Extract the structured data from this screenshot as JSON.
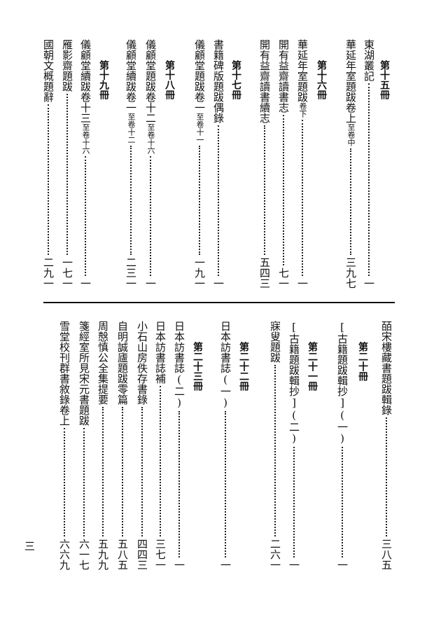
{
  "top": {
    "h15": "第十五冊",
    "e1": {
      "title": "東湖叢記",
      "page": "一"
    },
    "e2": {
      "title": "華延年室題跋卷上",
      "small": "至卷中",
      "page": "三九七"
    },
    "h16": "第十六冊",
    "e3": {
      "title": "華延年室題跋",
      "small": "卷下",
      "page": "一"
    },
    "e4": {
      "title": "開有益齋讀書志",
      "page": "七一"
    },
    "e5": {
      "title": "開有益齋讀書續志",
      "page": "五四三"
    },
    "h17": "第十七冊",
    "e6": {
      "title": "書籍碑版題跋偶錄",
      "page": "一"
    },
    "e7": {
      "title": "儀顧堂題跋卷一",
      "small": "至卷十一",
      "page": "一九一"
    },
    "h18": "第十八冊",
    "e8": {
      "title": "儀顧堂題跋卷十二",
      "small": "至卷十六",
      "page": "一"
    },
    "e9": {
      "title": "儀顧堂續跋卷一",
      "small": "至卷十二",
      "page": "二三一"
    },
    "h19": "第十九冊",
    "e10": {
      "title": "儀顧堂續跋卷十三",
      "small": "至卷十六",
      "page": "一"
    },
    "e11": {
      "title": "雁影齋題跋",
      "page": "一七一"
    },
    "e12": {
      "title": "國朝文概題辭",
      "page": "二九一"
    }
  },
  "bottom": {
    "e1": {
      "title": "皕宋樓藏書題跋輯錄",
      "page": "三八五"
    },
    "h20": "第二十冊",
    "e2": {
      "title": "[古籍題跋輯抄](一)",
      "page": "一"
    },
    "h21": "第二十一冊",
    "e3": {
      "title": "[古籍題跋輯抄](二)",
      "page": "一"
    },
    "e4": {
      "title": "寐叟題跋",
      "page": "二六一"
    },
    "h22": "第二十二冊",
    "e5": {
      "title": "日本訪書誌(一)",
      "page": "一"
    },
    "h23": "第二十三冊",
    "e6": {
      "title": "日本訪書誌(二)",
      "page": "一"
    },
    "e7": {
      "title": "日本訪書誌補",
      "page": "三七一"
    },
    "e8": {
      "title": "小石山房佚存書錄",
      "page": "四四三"
    },
    "e9": {
      "title": "自明誠廬題跋零篇",
      "page": "五八五"
    },
    "e10": {
      "title": "周慤慎公全集提要",
      "page": "五九九"
    },
    "e11": {
      "title": "箋經室所見宋元書題跋",
      "page": "六一七"
    },
    "e12": {
      "title": "雪堂校刊群書敘錄卷上",
      "page": "六六九"
    }
  },
  "folio": "三"
}
